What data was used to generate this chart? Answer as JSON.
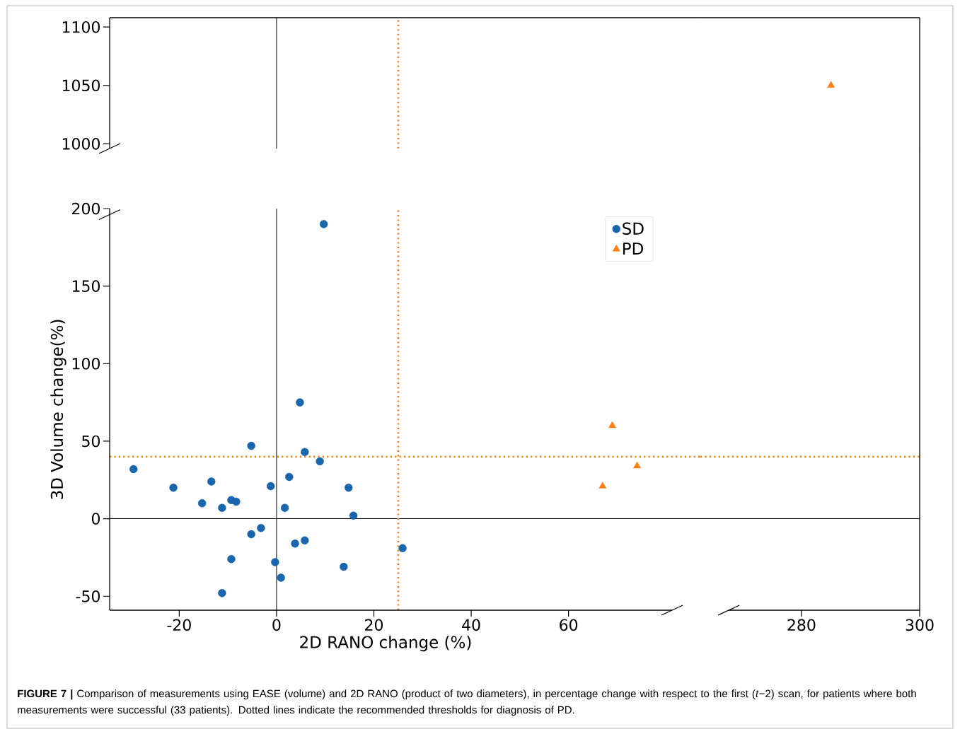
{
  "chart_data": [
    {
      "type": "scatter",
      "xlim": [
        -34.3,
        87.1
      ],
      "ylim": [
        996,
        1108
      ],
      "yticks": [
        1000,
        1050,
        1100
      ],
      "tick_labels": "y",
      "ref_lines": [
        {
          "axis": "x",
          "value": 0,
          "color": "#000000",
          "line_style": "solid"
        },
        {
          "axis": "x",
          "value": 25,
          "color": "#ff7f0e",
          "line_style": "dotted"
        }
      ]
    },
    {
      "type": "scatter",
      "xlim": [
        262.9,
        300
      ],
      "ylim": [
        996,
        1108
      ],
      "tick_labels": false,
      "series": [
        {
          "color": "#ff7f0e",
          "marker": "triangle",
          "x": [
            285
          ],
          "values": [
            1050
          ]
        }
      ]
    },
    {
      "type": "scatter",
      "xlim": [
        -34.3,
        87.1
      ],
      "ylim": [
        -59,
        200
      ],
      "xticks": [
        -20,
        0,
        20,
        40,
        60
      ],
      "yticks": [
        -50,
        0,
        50,
        100,
        150,
        200
      ],
      "xlabel": "2D RANO change (%)",
      "ylabel": "3D Volume change(%)",
      "legend": "top right",
      "series": [
        {
          "name": "SD",
          "color": "#1a66ad",
          "marker": "circle",
          "x": [
            -29.4,
            -21.2,
            -13.4,
            -15.3,
            -11.2,
            -9.3,
            -8.3,
            -5.2,
            -1.2,
            2.6,
            1.7,
            4.8,
            5.8,
            8.9,
            9.7,
            14.8,
            15.8,
            25.9,
            -3.2,
            -5.2,
            5.8,
            3.8,
            -9.3,
            -0.3,
            13.8,
            0.9,
            -11.2
          ],
          "values": [
            32,
            20,
            24,
            10,
            7,
            12,
            11,
            47,
            21,
            27,
            7,
            75,
            43,
            37,
            190,
            20,
            2,
            -19,
            -6,
            -10,
            -14,
            -16,
            -26,
            -28,
            -31,
            -38,
            -48
          ]
        },
        {
          "name": "PD",
          "color": "#ff7f0e",
          "marker": "triangle",
          "x": [
            67,
            69,
            74.1
          ],
          "values": [
            21,
            60,
            34
          ]
        }
      ],
      "ref_lines": [
        {
          "axis": "x",
          "value": 0,
          "color": "#000000",
          "line_style": "solid"
        },
        {
          "axis": "y",
          "value": 0,
          "color": "#000000",
          "line_style": "solid"
        },
        {
          "axis": "x",
          "value": 25,
          "color": "#ff7f0e",
          "line_style": "dotted"
        },
        {
          "axis": "y",
          "value": 40,
          "color": "#ff7f0e",
          "line_style": "dotted"
        }
      ],
      "annotations": [
        "**FIGURE 7 |** Comparison of measurements using EASE (volume) and 2D RANO (product of two diameters), in percentage change with respect to the first (*t*−2) scan, for patients where both measurements were successful (33 patients). Dotted lines indicate the recommended thresholds for diagnosis of PD."
      ]
    },
    {
      "type": "scatter",
      "xlim": [
        262.9,
        300
      ],
      "ylim": [
        -59,
        200
      ],
      "xticks": [
        280,
        300
      ],
      "tick_labels": "x",
      "ref_lines": [
        {
          "axis": "y",
          "value": 0,
          "color": "#000000",
          "line_style": "solid"
        },
        {
          "axis": "y",
          "value": 40,
          "color": "#ff7f0e",
          "line_style": "dotted"
        }
      ]
    }
  ]
}
